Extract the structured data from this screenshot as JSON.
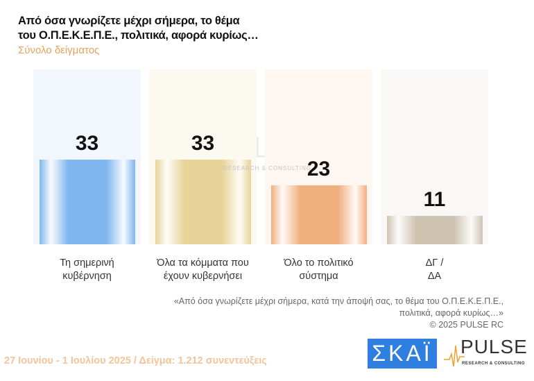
{
  "chart_data": {
    "type": "bar",
    "title_lines": [
      "Από όσα γνωρίζετε μέχρι σήμερα, το θέμα",
      "του  Ο.Π.Ε.Κ.Ε.Π.Ε.,  πολιτικά, αφορά κυρίως…"
    ],
    "subtitle": "Σύνολο δείγματος",
    "categories": [
      [
        "Τη σημερινή",
        "κυβέρνηση"
      ],
      [
        "Όλα τα κόμματα που",
        "έχουν κυβερνήσει"
      ],
      [
        "Όλο το πολιτικό",
        "σύστημα"
      ],
      [
        "ΔΓ /",
        "ΔΑ"
      ]
    ],
    "values": [
      33,
      33,
      23,
      11
    ],
    "colors": [
      "#7fb6ef",
      "#e8d49a",
      "#f0b07e",
      "#cfc3b2"
    ],
    "ylim": [
      0,
      60
    ],
    "xlabel": "",
    "ylabel": ""
  },
  "watermark": {
    "main": "PULSE",
    "sub": "RESEARCH & CONSULTING"
  },
  "note": {
    "line1": "«Από όσα γνωρίζετε μέχρι σήμερα, κατά την άποψή σας, το θέμα του Ο.Π.Ε.Κ.Ε.Π.Ε.,",
    "line2": "πολιτικά, αφορά κυρίως…»",
    "line3": "©  2025  PULSE RC"
  },
  "footer": "27 Ιουνίου - 1 Ιουλίου 2025  /  Δείγμα:  1.212 συνεντεύξεις",
  "logos": {
    "skai": "ΣΚΑΪ",
    "pulse": "PULSE",
    "pulse_sub": "RESEARCH & CONSULTING"
  }
}
